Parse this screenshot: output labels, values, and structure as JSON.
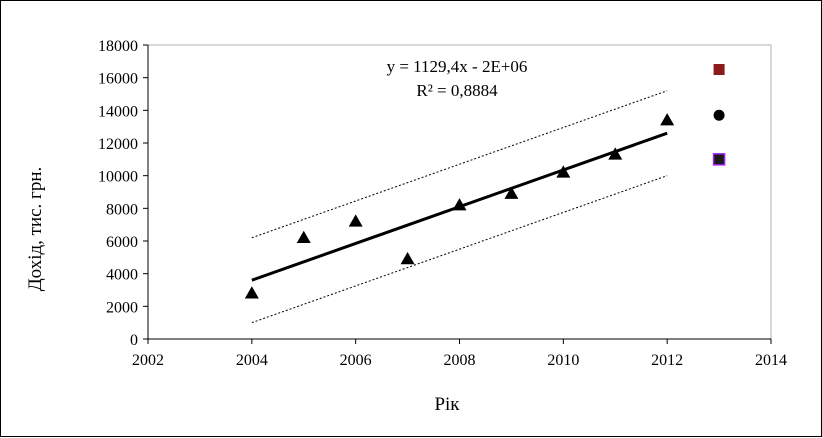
{
  "chart_data": {
    "type": "scatter",
    "title": "",
    "xlabel": "Рік",
    "ylabel": "Дохід, тис. грн.",
    "xlim": [
      2002,
      2014
    ],
    "ylim": [
      0,
      18000
    ],
    "x_ticks": [
      2002,
      2004,
      2006,
      2008,
      2010,
      2012,
      2014
    ],
    "y_ticks": [
      0,
      2000,
      4000,
      6000,
      8000,
      10000,
      12000,
      14000,
      16000,
      18000
    ],
    "x_tick_labels": [
      "2002",
      "2004",
      "2006",
      "2008",
      "2010",
      "2012",
      "2014"
    ],
    "y_tick_labels": [
      "0",
      "2000",
      "4000",
      "6000",
      "8000",
      "10000",
      "12000",
      "14000",
      "16000",
      "18000"
    ],
    "grid": false,
    "series": [
      {
        "marker": "triangle",
        "color": "#000000",
        "x": [
          2004,
          2005,
          2006,
          2007,
          2008,
          2009,
          2010,
          2011,
          2012
        ],
        "y": [
          2800,
          6200,
          7200,
          4900,
          8200,
          8900,
          10200,
          11300,
          13400
        ]
      }
    ],
    "trendline": {
      "x": [
        2004,
        2012
      ],
      "y": [
        3600,
        12600
      ],
      "color": "#000000"
    },
    "confidence_bounds": [
      {
        "x": [
          2004,
          2012
        ],
        "y": [
          6200,
          15200
        ],
        "color": "#000000"
      },
      {
        "x": [
          2004,
          2012
        ],
        "y": [
          1000,
          10000
        ],
        "color": "#000000"
      }
    ],
    "forecast_points": [
      {
        "marker": "square",
        "color": "#8b1a1a",
        "x": 2013,
        "y": 16500
      },
      {
        "marker": "circle",
        "color": "#000000",
        "x": 2013,
        "y": 13700
      },
      {
        "marker": "square",
        "color": "#1a1a1a",
        "edge_color": "#a020f0",
        "x": 2013,
        "y": 11000
      }
    ],
    "annotations": {
      "equation": "y = 1129,4x  - 2E+06",
      "r_squared": "R² = 0,8884"
    }
  }
}
